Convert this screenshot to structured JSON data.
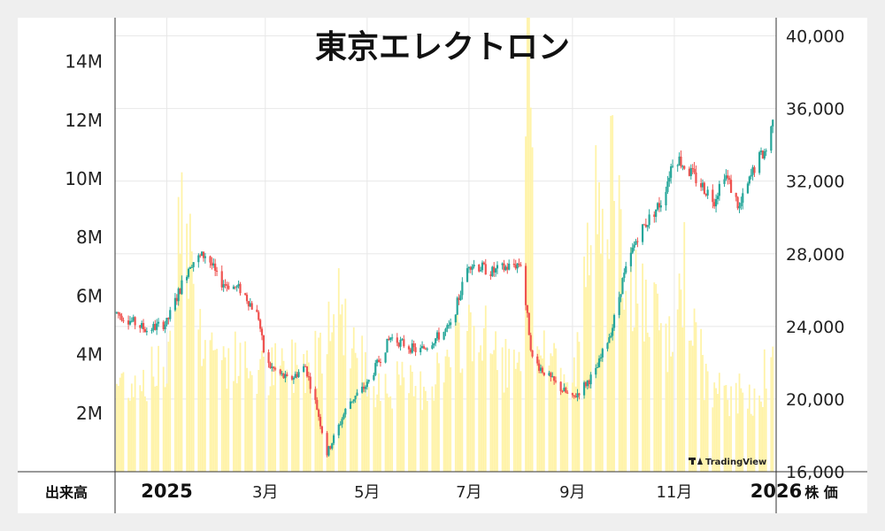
{
  "chart_data": {
    "type": "candlestick+volume",
    "title": "東京エレクトロン",
    "left_axis": {
      "label": "出来高",
      "ticks": [
        "2M",
        "4M",
        "6M",
        "8M",
        "10M",
        "12M",
        "14M"
      ],
      "tick_values": [
        2000000,
        4000000,
        6000000,
        8000000,
        10000000,
        12000000,
        14000000
      ],
      "range": [
        0,
        15500000
      ]
    },
    "right_axis": {
      "label": "株 価",
      "ticks": [
        "16,000",
        "20,000",
        "24,000",
        "28,000",
        "32,000",
        "36,000",
        "40,000"
      ],
      "tick_values": [
        16000,
        20000,
        24000,
        28000,
        32000,
        36000,
        40000
      ],
      "range": [
        16000,
        41000
      ]
    },
    "x_axis": {
      "ticks": [
        {
          "label": "2025",
          "date": "2025-01",
          "bold": true
        },
        {
          "label": "3月",
          "date": "2025-03",
          "bold": false
        },
        {
          "label": "5月",
          "date": "2025-05",
          "bold": false
        },
        {
          "label": "7月",
          "date": "2025-07",
          "bold": false
        },
        {
          "label": "9月",
          "date": "2025-09",
          "bold": false
        },
        {
          "label": "11月",
          "date": "2025-11",
          "bold": false
        },
        {
          "label": "2026",
          "date": "2026-01",
          "bold": true
        }
      ],
      "range": [
        "2024-12",
        "2026-01"
      ]
    },
    "price_keypoints": [
      [
        "2024-12",
        24800
      ],
      [
        "2024-12-20",
        23800
      ],
      [
        "2025-01",
        24200
      ],
      [
        "2025-01-15",
        27500
      ],
      [
        "2025-01-25",
        28000
      ],
      [
        "2025-02",
        26500
      ],
      [
        "2025-02-15",
        26000
      ],
      [
        "2025-02-25",
        24500
      ],
      [
        "2025-03",
        22000
      ],
      [
        "2025-03-15",
        21000
      ],
      [
        "2025-03-25",
        21800
      ],
      [
        "2025-04",
        19500
      ],
      [
        "2025-04-07",
        17000
      ],
      [
        "2025-04-20",
        19800
      ],
      [
        "2025-05",
        20800
      ],
      [
        "2025-05-15",
        23400
      ],
      [
        "2025-06",
        22600
      ],
      [
        "2025-06-20",
        24000
      ],
      [
        "2025-07",
        27500
      ],
      [
        "2025-07-15",
        27000
      ],
      [
        "2025-08",
        27500
      ],
      [
        "2025-08-08",
        22200
      ],
      [
        "2025-08-20",
        21000
      ],
      [
        "2025-09",
        20000
      ],
      [
        "2025-09-15",
        21500
      ],
      [
        "2025-09-25",
        24000
      ],
      [
        "2025-10",
        26500
      ],
      [
        "2025-10-10",
        29000
      ],
      [
        "2025-10-25",
        31000
      ],
      [
        "2025-11",
        33500
      ],
      [
        "2025-11-15",
        32000
      ],
      [
        "2025-11-25",
        31000
      ],
      [
        "2025-12",
        32500
      ],
      [
        "2025-12-10",
        30500
      ],
      [
        "2025-12-20",
        33000
      ],
      [
        "2025-12-28",
        34000
      ],
      [
        "2026-01",
        37500
      ]
    ],
    "volume_keypoints": [
      [
        "2024-12",
        3000000
      ],
      [
        "2025-01",
        3500000
      ],
      [
        "2025-01-10",
        10000000
      ],
      [
        "2025-01-20",
        5000000
      ],
      [
        "2025-02",
        4000000
      ],
      [
        "2025-03",
        3300000
      ],
      [
        "2025-04",
        4000000
      ],
      [
        "2025-04-10",
        6200000
      ],
      [
        "2025-05",
        3200000
      ],
      [
        "2025-06",
        2800000
      ],
      [
        "2025-06-20",
        3800000
      ],
      [
        "2025-07",
        5000000
      ],
      [
        "2025-08",
        3200000
      ],
      [
        "2025-08-05",
        14300000
      ],
      [
        "2025-08-10",
        5000000
      ],
      [
        "2025-09",
        2800000
      ],
      [
        "2025-09-20",
        11500000
      ],
      [
        "2025-10",
        7000000
      ],
      [
        "2025-10-15",
        5500000
      ],
      [
        "2025-11",
        4000000
      ],
      [
        "2025-11-05",
        7200000
      ],
      [
        "2025-11-20",
        3000000
      ],
      [
        "2025-12",
        2500000
      ],
      [
        "2025-12-20",
        2700000
      ],
      [
        "2026-01",
        4000000
      ]
    ],
    "colors": {
      "up": "#26a69a",
      "down": "#ef5350",
      "volume": "#fff3a8",
      "grid": "#e8e8e8",
      "axis": "#333333"
    },
    "watermark": "TradingView"
  }
}
